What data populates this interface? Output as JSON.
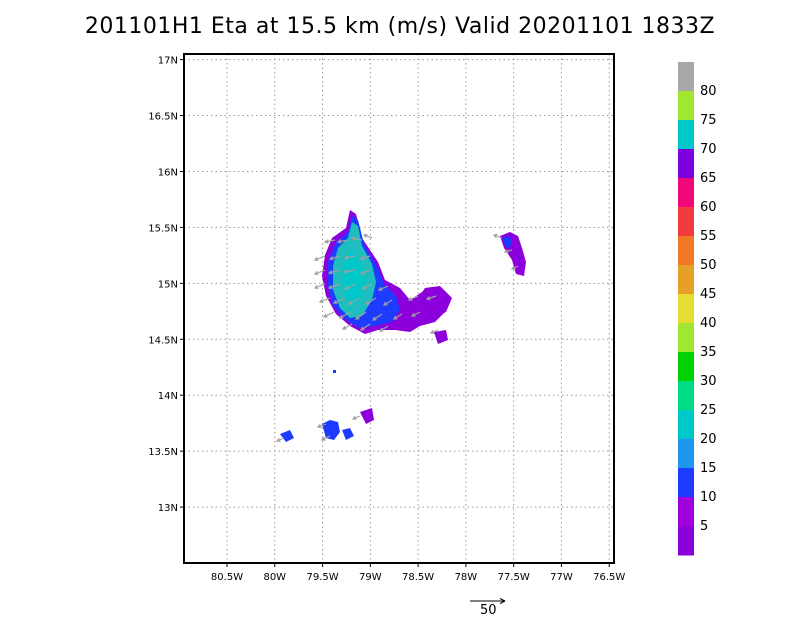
{
  "title": "201101H1 Eta at 15.5 km (m/s) Valid 20201101 1833Z",
  "axes": {
    "lat_labels": [
      "17N",
      "16.5N",
      "16N",
      "15.5N",
      "15N",
      "14.5N",
      "14N",
      "13.5N",
      "13N"
    ],
    "lat_values": [
      17,
      16.5,
      16,
      15.5,
      15,
      14.5,
      14,
      13.5,
      13
    ],
    "lon_labels": [
      "80.5W",
      "80W",
      "79.5W",
      "79W",
      "78.5W",
      "78W",
      "77.5W",
      "77W",
      "76.5W"
    ],
    "lon_values": [
      -80.5,
      -80,
      -79.5,
      -79,
      -78.5,
      -78,
      -77.5,
      -77,
      -76.5
    ],
    "lon_range": [
      -80.95,
      -76.45
    ],
    "lat_range": [
      12.5,
      17.05
    ],
    "grid": "dotted"
  },
  "colorbar": {
    "labels": [
      "80",
      "75",
      "70",
      "65",
      "60",
      "55",
      "50",
      "45",
      "40",
      "35",
      "30",
      "25",
      "20",
      "15",
      "10",
      "5"
    ],
    "colors": [
      "#a8a8a8",
      "#a0e632",
      "#00c8c8",
      "#7a00dc",
      "#f0087a",
      "#f03c3c",
      "#f07828",
      "#e6a028",
      "#e6dc32",
      "#a0e632",
      "#00d200",
      "#00dc82",
      "#00c8c8",
      "#1e96f0",
      "#1e3cff",
      "#a000dc",
      "#8c00dc"
    ]
  },
  "vector_key": {
    "label": "50"
  },
  "fields": {
    "colors": {
      "violet": "#8c00dc",
      "blue": "#1e3cff",
      "cyan": "#00c8c8",
      "teal": "#1ebebe",
      "arrow": "#a0a0a0"
    }
  }
}
